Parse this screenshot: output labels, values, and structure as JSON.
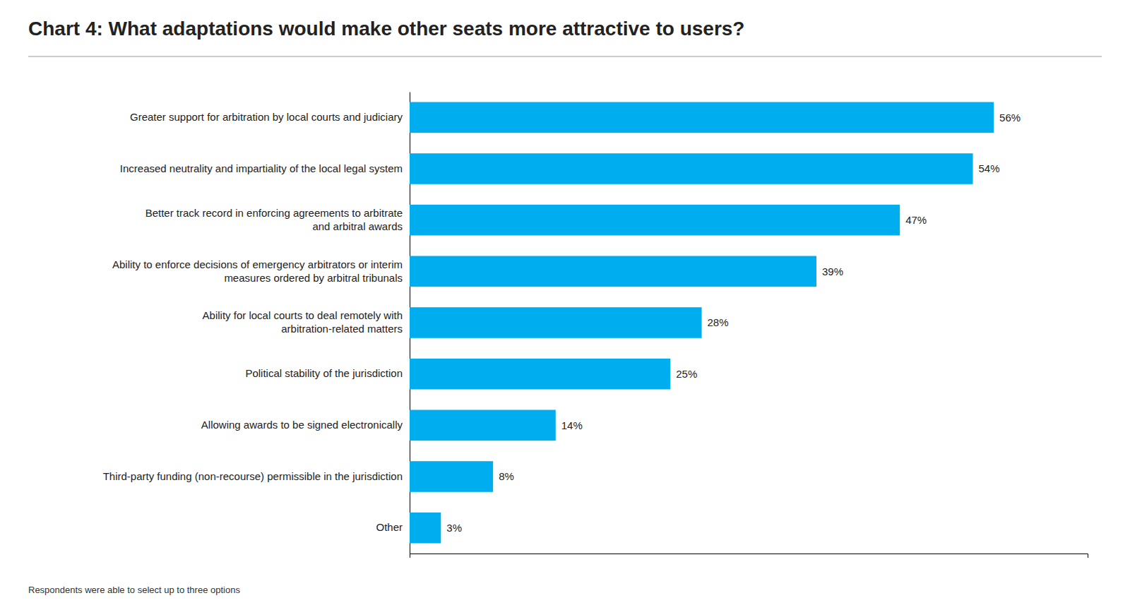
{
  "chart_data": {
    "type": "bar",
    "orientation": "horizontal",
    "title": "Chart 4: What adaptations would make other seats more attractive to users?",
    "categories": [
      "Greater support for arbitration by local courts and judiciary",
      "Increased neutrality and impartiality of the local legal system",
      "Better track record in enforcing agreements to arbitrate\nand arbitral awards",
      "Ability to enforce decisions of emergency arbitrators or interim\nmeasures ordered by arbitral tribunals",
      "Ability for local courts to deal remotely with\narbitration-related matters",
      "Political stability of the jurisdiction",
      "Allowing awards to be signed electronically",
      "Third-party funding (non-recourse) permissible in the jurisdiction",
      "Other"
    ],
    "values": [
      56,
      54,
      47,
      39,
      28,
      25,
      14,
      8,
      3
    ],
    "value_labels": [
      "56%",
      "54%",
      "47%",
      "39%",
      "28%",
      "25%",
      "14%",
      "8%",
      "3%"
    ],
    "data_labels": true,
    "color": "#00AEEF",
    "xlim": [
      0,
      65
    ],
    "xticks": [],
    "tick_labels": "y",
    "grid": false,
    "annotations": [
      "Respondents were able to select up to three options"
    ]
  }
}
